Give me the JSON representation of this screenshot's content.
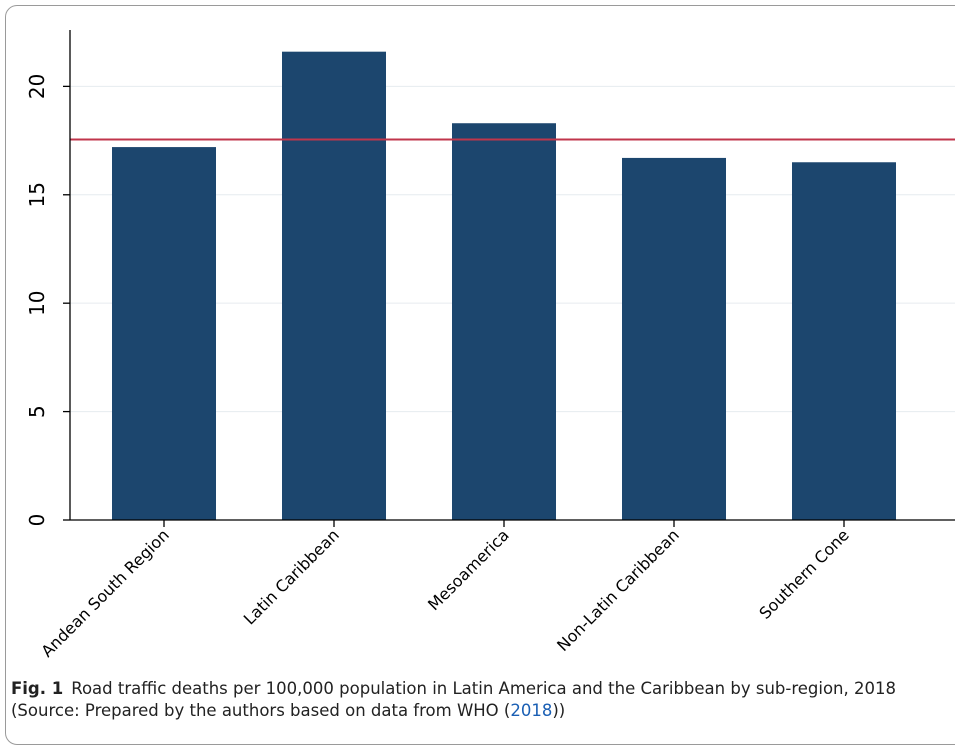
{
  "chart_data": {
    "type": "bar",
    "categories": [
      "Andean South Region",
      "Latin Caribbean",
      "Mesoamerica",
      "Non-Latin Caribbean",
      "Southern Cone"
    ],
    "values": [
      17.2,
      21.6,
      18.3,
      16.7,
      16.5
    ],
    "reference_line": {
      "value": 17.55,
      "color": "#c0354b"
    },
    "yticks": [
      0,
      5,
      10,
      15,
      20
    ],
    "ylim": [
      0,
      22.6
    ],
    "grid": true,
    "bar_color": "#1c466e"
  },
  "caption": {
    "label": "Fig. 1",
    "text": "Road traffic deaths per 100,000 population in Latin America and the Caribbean by sub-region, 2018 (Source: Prepared by the authors based on data from WHO (",
    "citation": "2018",
    "end": "))"
  }
}
